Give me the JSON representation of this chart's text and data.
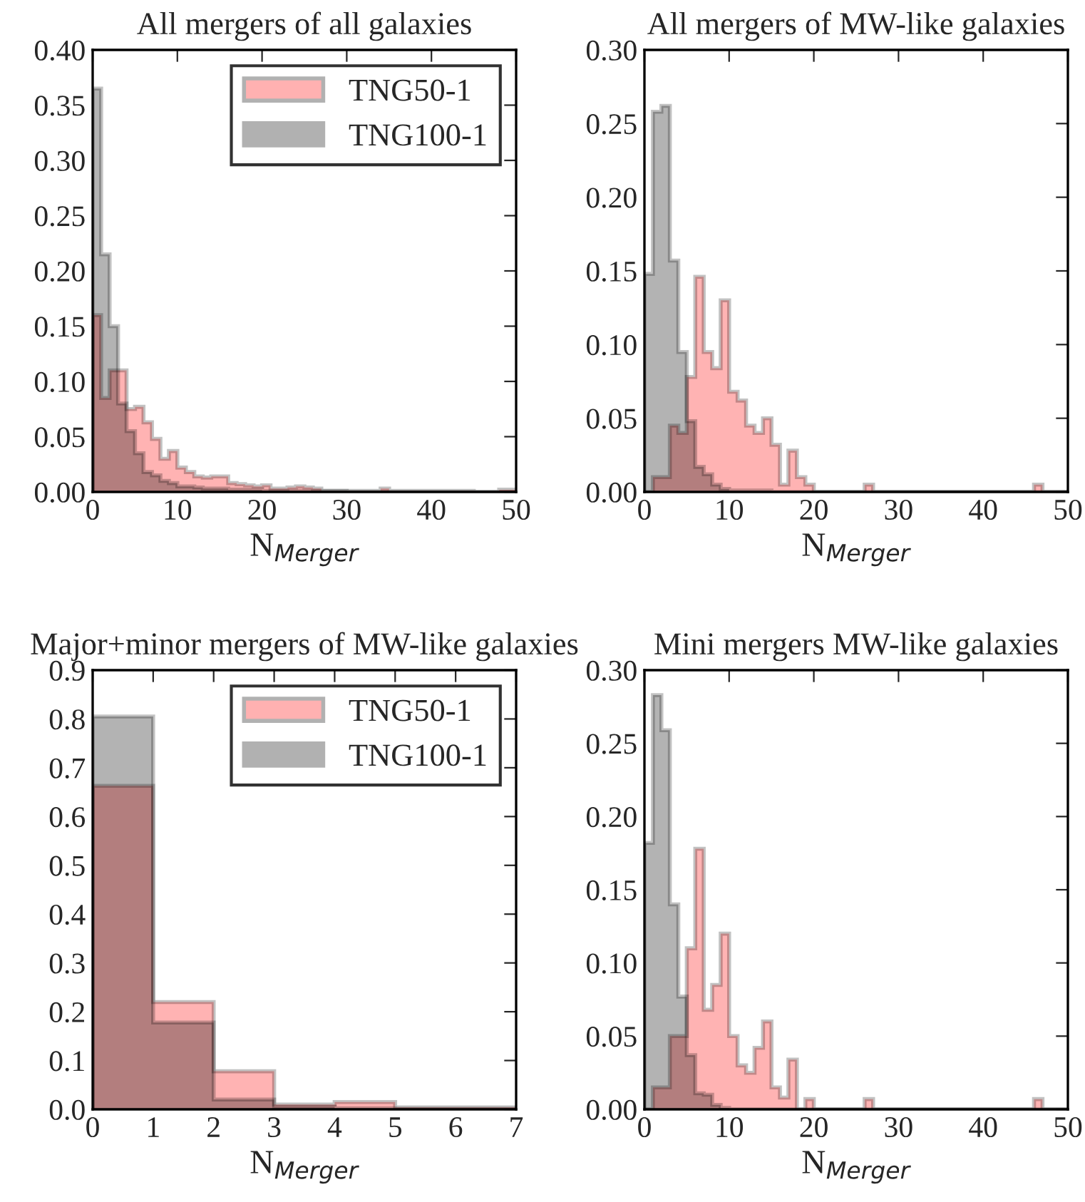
{
  "chart_data": [
    {
      "type": "histogram",
      "title": "All mergers of all galaxies",
      "xlabel": "N$_{Merger}$",
      "legend": "top right",
      "bins": [
        0,
        1,
        2,
        3,
        4,
        5,
        6,
        7,
        8,
        9,
        10,
        11,
        12,
        13,
        14,
        15,
        16,
        17,
        18,
        19,
        20,
        21,
        22,
        23,
        24,
        25,
        26,
        27,
        28,
        29,
        30,
        31,
        32,
        33,
        34,
        35,
        36,
        37,
        38,
        39,
        40,
        41,
        42,
        43,
        44,
        45,
        46,
        47,
        48,
        49,
        50
      ],
      "xlim": [
        0,
        50
      ],
      "xticks": [
        0,
        10,
        20,
        30,
        40,
        50
      ],
      "ylim": [
        0,
        0.4
      ],
      "yticks": [
        {
          "value": 0,
          "label": "0.00"
        },
        {
          "value": 0.05,
          "label": "0.05"
        },
        {
          "value": 0.1,
          "label": "0.10"
        },
        {
          "value": 0.15,
          "label": "0.15"
        },
        {
          "value": 0.2,
          "label": "0.20"
        },
        {
          "value": 0.25,
          "label": "0.25"
        },
        {
          "value": 0.3,
          "label": "0.30"
        },
        {
          "value": 0.35,
          "label": "0.35"
        },
        {
          "value": 0.4,
          "label": "0.40"
        }
      ],
      "series": [
        {
          "name": "TNG50-1",
          "color": "#ffb3b3",
          "values": [
            0.16,
            0.085,
            0.11,
            0.11,
            0.075,
            0.077,
            0.063,
            0.048,
            0.03,
            0.037,
            0.022,
            0.018,
            0.014,
            0.013,
            0.014,
            0.014,
            0.008,
            0.007,
            0.006,
            0.005,
            0.006,
            0.003,
            0.003,
            0.004,
            0.005,
            0.004,
            0.003,
            0.001,
            0.001,
            0.001,
            0.001,
            0.001,
            0.001,
            0.001,
            0.003,
            0.001,
            0.001,
            0.001,
            0.001,
            0.001,
            0.001,
            0.001,
            0.001,
            0.001,
            0.001,
            0,
            0,
            0,
            0.002,
            0.002
          ]
        },
        {
          "name": "TNG100-1",
          "color": "#b3b3b3",
          "values": [
            0.365,
            0.215,
            0.15,
            0.08,
            0.055,
            0.035,
            0.018,
            0.015,
            0.01,
            0.008,
            0.005,
            0.005,
            0.004,
            0.003,
            0.003,
            0.003,
            0.002,
            0.002,
            0.002,
            0.002,
            0.001,
            0.001,
            0.001,
            0.001,
            0.001,
            0.001,
            0.001,
            0.001,
            0.001,
            0.001,
            0,
            0,
            0,
            0,
            0,
            0,
            0,
            0,
            0,
            0,
            0,
            0,
            0,
            0,
            0,
            0,
            0,
            0,
            0,
            0
          ]
        }
      ]
    },
    {
      "type": "histogram",
      "title": "All mergers of MW-like galaxies",
      "xlabel": "N$_{Merger}$",
      "bins": [
        0,
        1,
        2,
        3,
        4,
        5,
        6,
        7,
        8,
        9,
        10,
        11,
        12,
        13,
        14,
        15,
        16,
        17,
        18,
        19,
        20,
        21,
        22,
        23,
        24,
        25,
        26,
        27,
        28,
        29,
        30,
        31,
        32,
        33,
        34,
        35,
        36,
        37,
        38,
        39,
        40,
        41,
        42,
        43,
        44,
        45,
        46,
        47,
        48,
        49,
        50
      ],
      "xlim": [
        0,
        50
      ],
      "xticks": [
        0,
        10,
        20,
        30,
        40,
        50
      ],
      "ylim": [
        0,
        0.3
      ],
      "yticks": [
        {
          "value": 0,
          "label": "0.00"
        },
        {
          "value": 0.05,
          "label": "0.05"
        },
        {
          "value": 0.1,
          "label": "0.10"
        },
        {
          "value": 0.15,
          "label": "0.15"
        },
        {
          "value": 0.2,
          "label": "0.20"
        },
        {
          "value": 0.25,
          "label": "0.25"
        },
        {
          "value": 0.3,
          "label": "0.30"
        }
      ],
      "series": [
        {
          "color": "#ffb3b3",
          "values": [
            0,
            0.01,
            0.01,
            0.045,
            0.04,
            0.078,
            0.146,
            0.095,
            0.084,
            0.13,
            0.068,
            0.062,
            0.045,
            0.04,
            0.05,
            0.032,
            0.005,
            0.028,
            0.01,
            0.005,
            0,
            0,
            0,
            0,
            0,
            0,
            0.005,
            0,
            0,
            0,
            0,
            0,
            0,
            0,
            0,
            0,
            0,
            0,
            0,
            0,
            0,
            0,
            0,
            0,
            0,
            0,
            0.005,
            0,
            0,
            0
          ]
        },
        {
          "color": "#b3b3b3",
          "values": [
            0.148,
            0.258,
            0.262,
            0.157,
            0.095,
            0.048,
            0.017,
            0.012,
            0.005,
            0.002,
            0.001,
            0.001,
            0.001,
            0.001,
            0.001,
            0,
            0,
            0,
            0,
            0,
            0,
            0,
            0,
            0,
            0,
            0,
            0,
            0,
            0,
            0,
            0,
            0,
            0,
            0,
            0,
            0,
            0,
            0,
            0,
            0,
            0,
            0,
            0,
            0,
            0,
            0,
            0,
            0,
            0,
            0
          ]
        }
      ]
    },
    {
      "type": "histogram",
      "title": "Major+minor mergers of MW-like galaxies",
      "xlabel": "N$_{Merger}$",
      "legend": "top right",
      "bins": [
        0,
        1,
        2,
        3,
        4,
        5,
        6,
        7
      ],
      "xlim": [
        0,
        7
      ],
      "xticks": [
        0,
        1,
        2,
        3,
        4,
        5,
        6,
        7
      ],
      "ylim": [
        0,
        0.9
      ],
      "yticks": [
        {
          "value": 0,
          "label": "0.0"
        },
        {
          "value": 0.1,
          "label": "0.1"
        },
        {
          "value": 0.2,
          "label": "0.2"
        },
        {
          "value": 0.3,
          "label": "0.3"
        },
        {
          "value": 0.4,
          "label": "0.4"
        },
        {
          "value": 0.5,
          "label": "0.5"
        },
        {
          "value": 0.6,
          "label": "0.6"
        },
        {
          "value": 0.7,
          "label": "0.7"
        },
        {
          "value": 0.8,
          "label": "0.8"
        },
        {
          "value": 0.9,
          "label": "0.9"
        }
      ],
      "series": [
        {
          "name": "TNG50-1",
          "color": "#ffb3b3",
          "values": [
            0.663,
            0.22,
            0.078,
            0.01,
            0.015,
            0.004,
            0.004
          ]
        },
        {
          "name": "TNG100-1",
          "color": "#b3b3b3",
          "values": [
            0.805,
            0.178,
            0.02,
            0.005,
            0.002,
            0.001,
            0.001
          ]
        }
      ]
    },
    {
      "type": "histogram",
      "title": "Mini mergers MW-like galaxies",
      "xlabel": "N$_{Merger}$",
      "bins": [
        0,
        1,
        2,
        3,
        4,
        5,
        6,
        7,
        8,
        9,
        10,
        11,
        12,
        13,
        14,
        15,
        16,
        17,
        18,
        19,
        20,
        21,
        22,
        23,
        24,
        25,
        26,
        27,
        28,
        29,
        30,
        31,
        32,
        33,
        34,
        35,
        36,
        37,
        38,
        39,
        40,
        41,
        42,
        43,
        44,
        45,
        46,
        47,
        48,
        49,
        50
      ],
      "xlim": [
        0,
        50
      ],
      "xticks": [
        0,
        10,
        20,
        30,
        40,
        50
      ],
      "ylim": [
        0,
        0.3
      ],
      "yticks": [
        {
          "value": 0,
          "label": "0.00"
        },
        {
          "value": 0.05,
          "label": "0.05"
        },
        {
          "value": 0.1,
          "label": "0.10"
        },
        {
          "value": 0.15,
          "label": "0.15"
        },
        {
          "value": 0.2,
          "label": "0.20"
        },
        {
          "value": 0.25,
          "label": "0.25"
        },
        {
          "value": 0.3,
          "label": "0.30"
        }
      ],
      "series": [
        {
          "color": "#ffb3b3",
          "values": [
            0,
            0.015,
            0.015,
            0.05,
            0.05,
            0.11,
            0.178,
            0.068,
            0.085,
            0.12,
            0.05,
            0.03,
            0.025,
            0.042,
            0.06,
            0.015,
            0.008,
            0.034,
            0,
            0.007,
            0,
            0,
            0,
            0,
            0,
            0,
            0.007,
            0,
            0,
            0,
            0,
            0,
            0,
            0,
            0,
            0,
            0,
            0,
            0,
            0,
            0,
            0,
            0,
            0,
            0,
            0,
            0.007,
            0,
            0,
            0
          ]
        },
        {
          "color": "#b3b3b3",
          "values": [
            0.182,
            0.283,
            0.259,
            0.14,
            0.077,
            0.037,
            0.011,
            0.01,
            0.003,
            0.001,
            0,
            0,
            0,
            0,
            0,
            0,
            0,
            0,
            0,
            0,
            0,
            0,
            0,
            0,
            0,
            0,
            0,
            0,
            0,
            0,
            0,
            0,
            0,
            0,
            0,
            0,
            0,
            0,
            0,
            0,
            0,
            0,
            0,
            0,
            0,
            0,
            0,
            0,
            0,
            0
          ]
        }
      ]
    }
  ]
}
